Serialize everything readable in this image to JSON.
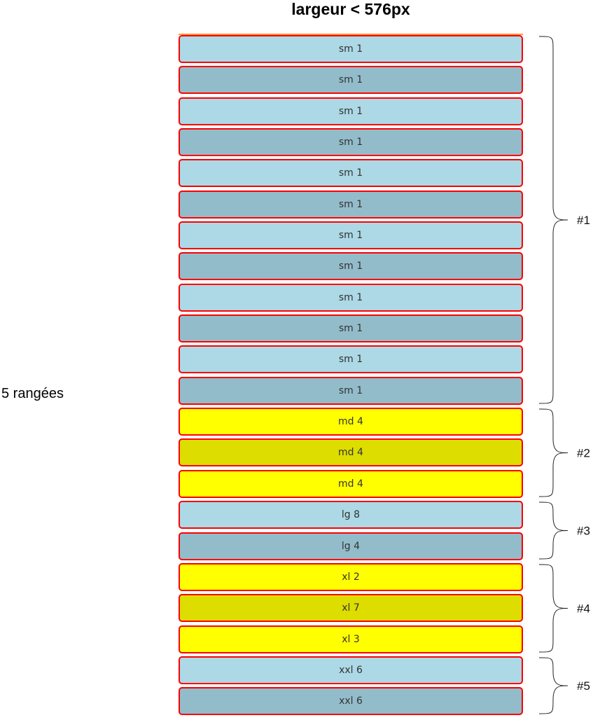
{
  "title": "largeur < 576px",
  "rows_label": "5 rangées",
  "colors": {
    "light_blue": "#add8e6",
    "dark_blue": "#93bccb",
    "yellow": "#ffff00",
    "olive": "#dddd00",
    "border": "#ff0000"
  },
  "cells": [
    {
      "label": "sm 1",
      "color": "light_blue"
    },
    {
      "label": "sm 1",
      "color": "dark_blue"
    },
    {
      "label": "sm 1",
      "color": "light_blue"
    },
    {
      "label": "sm 1",
      "color": "dark_blue"
    },
    {
      "label": "sm 1",
      "color": "light_blue"
    },
    {
      "label": "sm 1",
      "color": "dark_blue"
    },
    {
      "label": "sm 1",
      "color": "light_blue"
    },
    {
      "label": "sm 1",
      "color": "dark_blue"
    },
    {
      "label": "sm 1",
      "color": "light_blue"
    },
    {
      "label": "sm 1",
      "color": "dark_blue"
    },
    {
      "label": "sm 1",
      "color": "light_blue"
    },
    {
      "label": "sm 1",
      "color": "dark_blue"
    },
    {
      "label": "md 4",
      "color": "yellow"
    },
    {
      "label": "md 4",
      "color": "olive"
    },
    {
      "label": "md 4",
      "color": "yellow"
    },
    {
      "label": "lg 8",
      "color": "light_blue"
    },
    {
      "label": "lg 4",
      "color": "dark_blue"
    },
    {
      "label": "xl 2",
      "color": "yellow"
    },
    {
      "label": "xl 7",
      "color": "olive"
    },
    {
      "label": "xl 3",
      "color": "yellow"
    },
    {
      "label": "xxl 6",
      "color": "light_blue"
    },
    {
      "label": "xxl 6",
      "color": "dark_blue"
    }
  ],
  "groups": [
    {
      "label": "#1",
      "first_cell": 0,
      "last_cell": 11
    },
    {
      "label": "#2",
      "first_cell": 12,
      "last_cell": 14
    },
    {
      "label": "#3",
      "first_cell": 15,
      "last_cell": 16
    },
    {
      "label": "#4",
      "first_cell": 17,
      "last_cell": 19
    },
    {
      "label": "#5",
      "first_cell": 20,
      "last_cell": 21
    }
  ]
}
